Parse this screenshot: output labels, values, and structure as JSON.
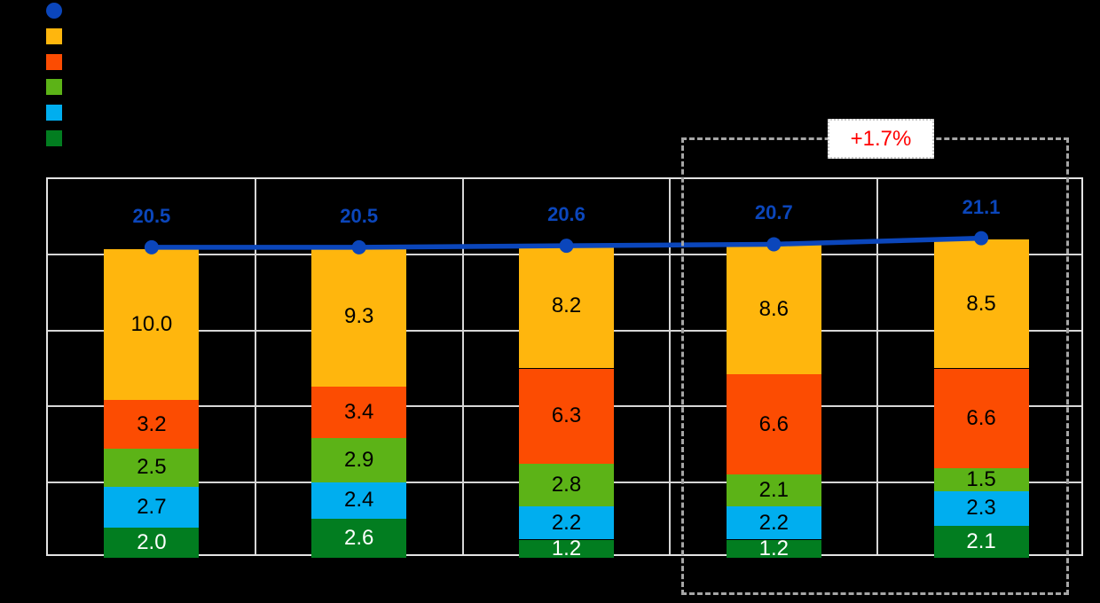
{
  "canvas": {
    "background": "#000000"
  },
  "colors": {
    "grid": "#D6D6D6",
    "plot_border": "#E3E3E3",
    "dashed_box": "#A6A6A6",
    "annotation_border": "#C9C9C9",
    "annotation_bg": "#FFFFFF"
  },
  "legend": {
    "items": [
      {
        "name": "legend-line-marker",
        "shape": "circle",
        "color": "#0B46BB"
      },
      {
        "name": "legend-yellow-swatch",
        "shape": "square",
        "color": "#FFB60D"
      },
      {
        "name": "legend-orange-swatch",
        "shape": "square",
        "color": "#FC4C02"
      },
      {
        "name": "legend-green-swatch",
        "shape": "square",
        "color": "#5CB317"
      },
      {
        "name": "legend-lightblue-swatch",
        "shape": "square",
        "color": "#00AEEF"
      },
      {
        "name": "legend-darkgreen-swatch",
        "shape": "square",
        "color": "#027D20"
      }
    ]
  },
  "chart_data": {
    "type": "bar",
    "subtype": "stacked-columns-with-line-overlay",
    "categories": [
      "",
      "",
      "",
      "",
      ""
    ],
    "series": [
      {
        "name": "darkgreen-segment",
        "color": "#027D20",
        "label_color": "#FFFFFF",
        "values": [
          2.0,
          2.6,
          1.2,
          1.2,
          2.1
        ]
      },
      {
        "name": "lightblue-segment",
        "color": "#00AEEF",
        "label_color": "#000000",
        "values": [
          2.7,
          2.4,
          2.2,
          2.2,
          2.3
        ]
      },
      {
        "name": "green-segment",
        "color": "#5CB317",
        "label_color": "#000000",
        "values": [
          2.5,
          2.9,
          2.8,
          2.1,
          1.5
        ]
      },
      {
        "name": "orange-segment",
        "color": "#FC4C02",
        "label_color": "#000000",
        "values": [
          3.2,
          3.4,
          6.3,
          6.6,
          6.6
        ]
      },
      {
        "name": "yellow-segment",
        "color": "#FFB60D",
        "label_color": "#000000",
        "values": [
          10.0,
          9.3,
          8.2,
          8.6,
          8.5
        ]
      }
    ],
    "line_series": {
      "name": "total-line",
      "color": "#0B46BB",
      "label_color": "#0B46BB",
      "values": [
        20.5,
        20.5,
        20.6,
        20.7,
        21.1
      ]
    },
    "ylim": [
      0,
      25
    ],
    "grid_step": 5,
    "grid": true,
    "legend_position": "top-left",
    "annotation": {
      "label": "+1.7%",
      "text_color": "#FF0000",
      "dashed_region": {
        "from_category": 4,
        "to_category": 5
      }
    }
  }
}
